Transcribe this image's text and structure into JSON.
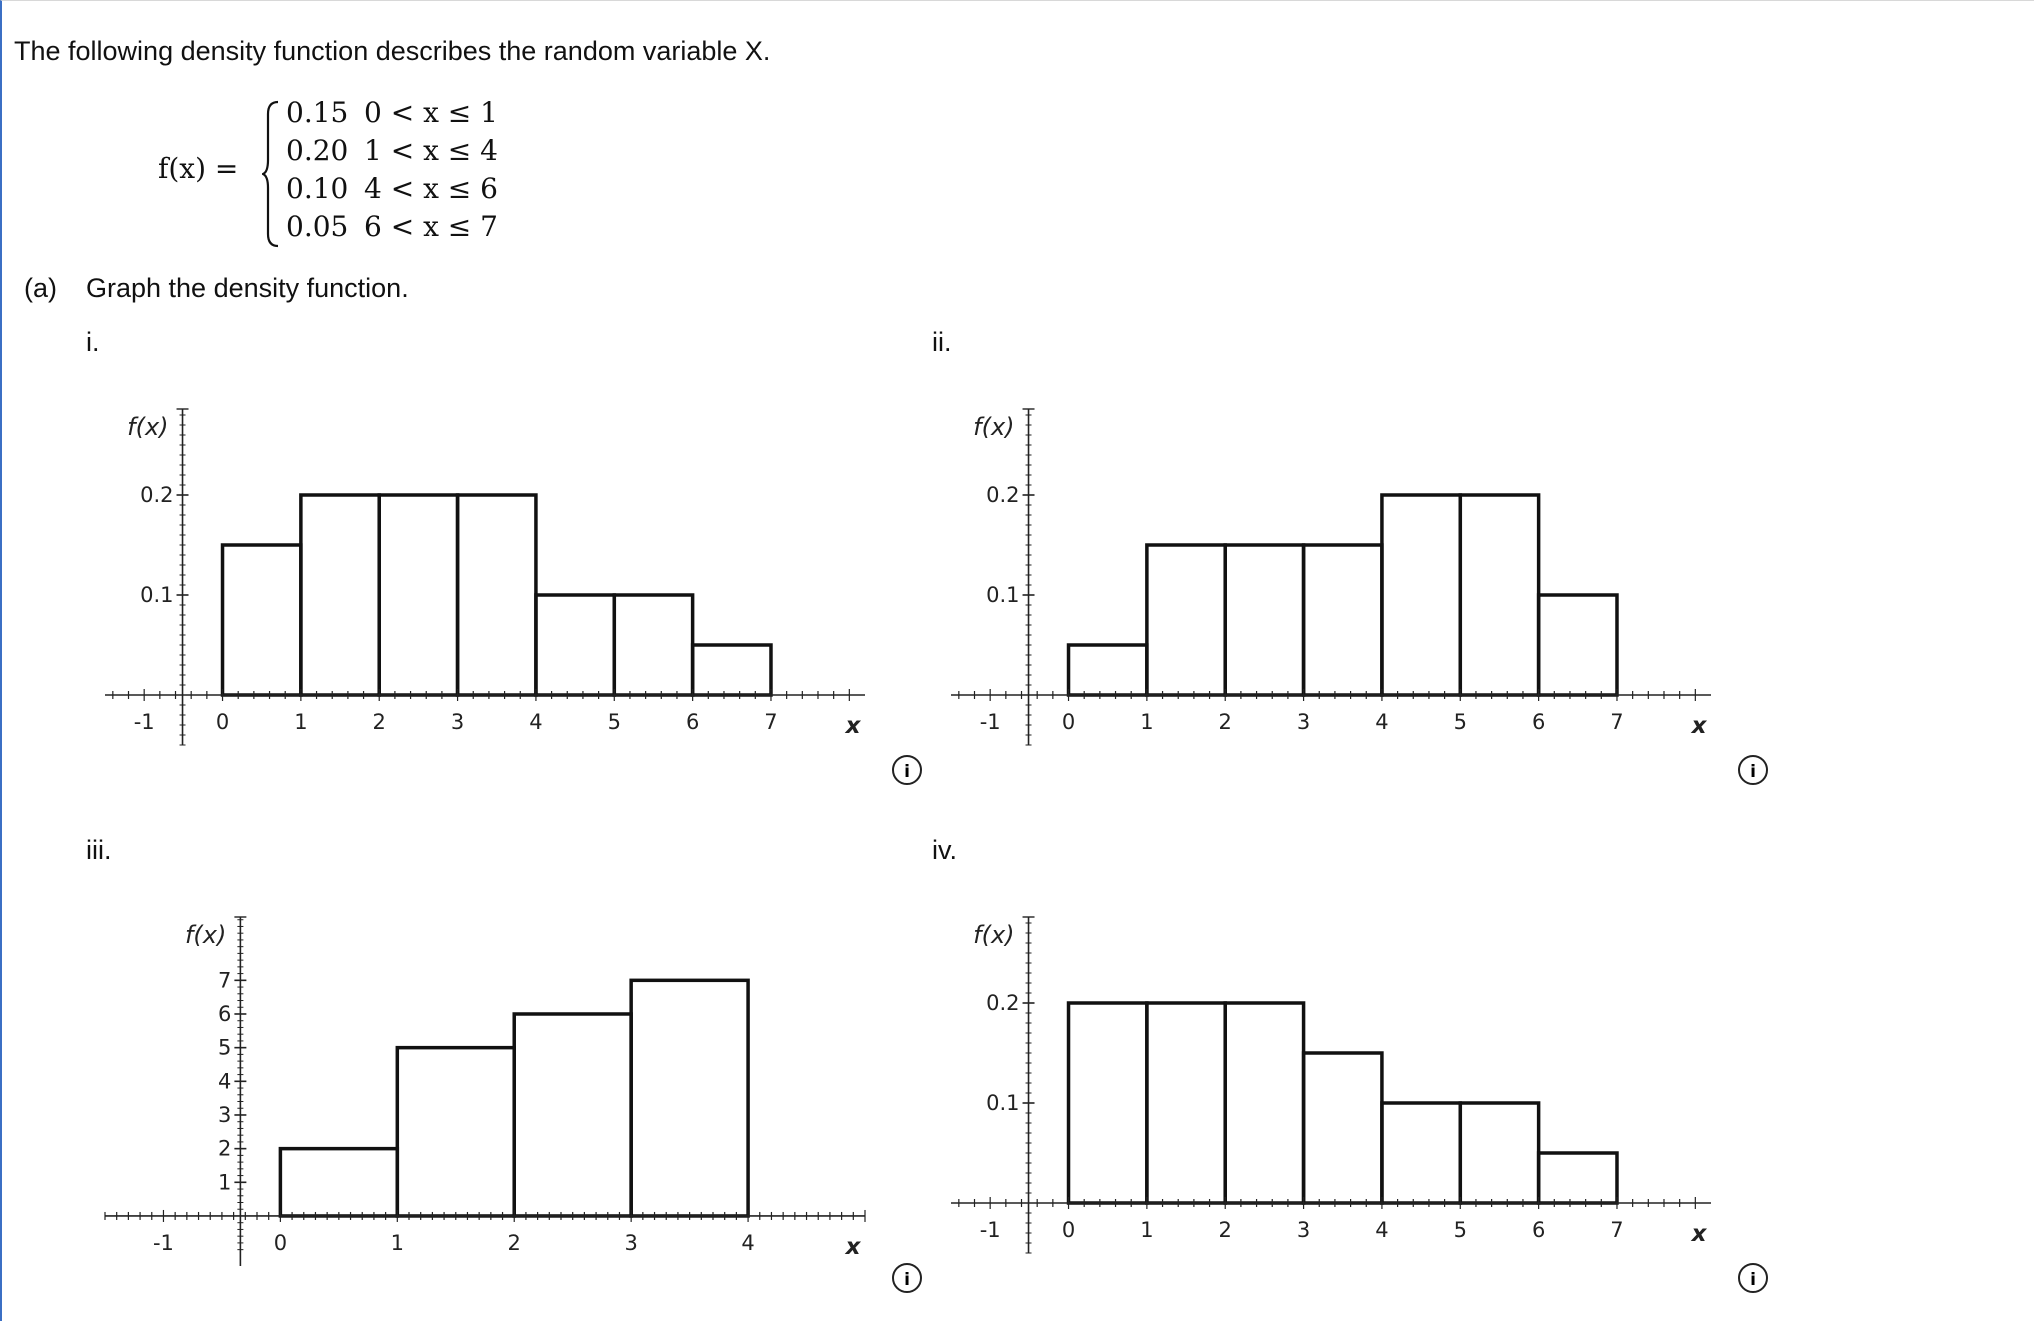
{
  "problem": {
    "intro": "The following density function describes the random variable X.",
    "function_label": "f(x) =",
    "cases": [
      {
        "value": "0.15",
        "condition": "0 < x ≤ 1"
      },
      {
        "value": "0.20",
        "condition": "1 < x ≤ 4"
      },
      {
        "value": "0.10",
        "condition": "4 < x ≤ 6"
      },
      {
        "value": "0.05",
        "condition": "6 < x ≤ 7"
      }
    ],
    "part_label": "(a)",
    "part_text": "Graph the density function."
  },
  "options": [
    {
      "label": "i.",
      "info_icon": "info-circle-icon"
    },
    {
      "label": "ii.",
      "info_icon": "info-circle-icon"
    },
    {
      "label": "iii.",
      "info_icon": "info-circle-icon"
    },
    {
      "label": "iv.",
      "info_icon": "info-circle-icon"
    }
  ],
  "chart_data": [
    {
      "type": "bar",
      "title": "",
      "xlabel": "x",
      "ylabel": "f(x)",
      "bins": [
        [
          0,
          1
        ],
        [
          1,
          2
        ],
        [
          2,
          3
        ],
        [
          3,
          4
        ],
        [
          4,
          5
        ],
        [
          5,
          6
        ],
        [
          6,
          7
        ]
      ],
      "values": [
        0.15,
        0.2,
        0.2,
        0.2,
        0.1,
        0.1,
        0.05
      ],
      "xlim": [
        -1.5,
        8.2
      ],
      "ylim": [
        -0.05,
        0.29
      ],
      "x_ticks": [
        "-1",
        "0",
        "1",
        "2",
        "3",
        "4",
        "5",
        "6",
        "7"
      ],
      "y_ticks": [
        "0.1",
        "0.2"
      ],
      "y_tick_values": [
        0.1,
        0.2
      ],
      "grid": false,
      "legend": "none"
    },
    {
      "type": "bar",
      "title": "",
      "xlabel": "x",
      "ylabel": "f(x)",
      "bins": [
        [
          0,
          1
        ],
        [
          1,
          2
        ],
        [
          2,
          3
        ],
        [
          3,
          4
        ],
        [
          4,
          5
        ],
        [
          5,
          6
        ],
        [
          6,
          7
        ]
      ],
      "values": [
        0.05,
        0.15,
        0.15,
        0.15,
        0.2,
        0.2,
        0.1
      ],
      "xlim": [
        -1.5,
        8.2
      ],
      "ylim": [
        -0.05,
        0.29
      ],
      "x_ticks": [
        "-1",
        "0",
        "1",
        "2",
        "3",
        "4",
        "5",
        "6",
        "7"
      ],
      "y_ticks": [
        "0.1",
        "0.2"
      ],
      "y_tick_values": [
        0.1,
        0.2
      ],
      "grid": false,
      "legend": "none"
    },
    {
      "type": "bar",
      "title": "",
      "xlabel": "x",
      "ylabel": "f(x)",
      "bins": [
        [
          0,
          1
        ],
        [
          1,
          2
        ],
        [
          2,
          3
        ],
        [
          3,
          4
        ]
      ],
      "values": [
        2,
        5,
        6,
        7
      ],
      "xlim": [
        -1.5,
        5.0
      ],
      "ylim": [
        -1.1,
        9.0
      ],
      "x_ticks": [
        "-1",
        "0",
        "1",
        "2",
        "3",
        "4"
      ],
      "y_ticks": [
        "1",
        "2",
        "3",
        "4",
        "5",
        "6",
        "7"
      ],
      "y_tick_values": [
        1,
        2,
        3,
        4,
        5,
        6,
        7
      ],
      "grid": false,
      "legend": "none"
    },
    {
      "type": "bar",
      "title": "",
      "xlabel": "x",
      "ylabel": "f(x)",
      "bins": [
        [
          0,
          1
        ],
        [
          1,
          2
        ],
        [
          2,
          3
        ],
        [
          3,
          4
        ],
        [
          4,
          5
        ],
        [
          5,
          6
        ],
        [
          6,
          7
        ]
      ],
      "values": [
        0.2,
        0.2,
        0.2,
        0.15,
        0.1,
        0.1,
        0.05
      ],
      "xlim": [
        -1.5,
        8.2
      ],
      "ylim": [
        -0.05,
        0.29
      ],
      "x_ticks": [
        "-1",
        "0",
        "1",
        "2",
        "3",
        "4",
        "5",
        "6",
        "7"
      ],
      "y_ticks": [
        "0.1",
        "0.2"
      ],
      "y_tick_values": [
        0.1,
        0.2
      ],
      "grid": false,
      "legend": "none"
    }
  ]
}
